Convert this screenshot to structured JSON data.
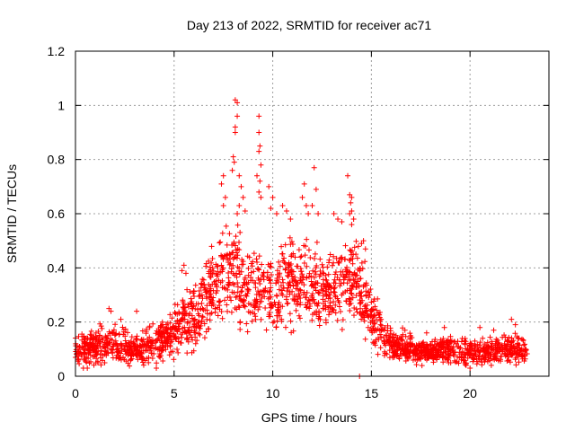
{
  "chart_data": {
    "type": "scatter",
    "title": "Day 213 of 2022, SRMTID for receiver ac71",
    "xlabel": "GPS time / hours",
    "ylabel": "SRMTID / TECUs",
    "xlim": [
      0,
      24
    ],
    "ylim": [
      0,
      1.2
    ],
    "x_ticks": [
      0,
      5,
      10,
      15,
      20
    ],
    "x_tick_labels": [
      "0",
      "5",
      "10",
      "15",
      "20"
    ],
    "y_ticks": [
      0,
      0.2,
      0.4,
      0.6,
      0.8,
      1,
      1.2
    ],
    "y_tick_labels": [
      "0",
      "0.2",
      "0.4",
      "0.6",
      "0.8",
      "1",
      "1.2"
    ],
    "grid": true,
    "marker": "plus",
    "series": [
      {
        "name": "SRMTID",
        "color": "#ff0000",
        "x_range": [
          0,
          22.9
        ],
        "envelope": [
          {
            "x": 0.0,
            "median": 0.09,
            "spread": 0.05
          },
          {
            "x": 1.0,
            "median": 0.11,
            "spread": 0.07
          },
          {
            "x": 2.0,
            "median": 0.12,
            "spread": 0.07
          },
          {
            "x": 3.0,
            "median": 0.1,
            "spread": 0.06
          },
          {
            "x": 4.0,
            "median": 0.12,
            "spread": 0.07
          },
          {
            "x": 5.0,
            "median": 0.17,
            "spread": 0.09
          },
          {
            "x": 5.5,
            "median": 0.2,
            "spread": 0.1
          },
          {
            "x": 6.0,
            "median": 0.22,
            "spread": 0.12
          },
          {
            "x": 6.5,
            "median": 0.26,
            "spread": 0.13
          },
          {
            "x": 7.0,
            "median": 0.33,
            "spread": 0.15
          },
          {
            "x": 7.5,
            "median": 0.37,
            "spread": 0.16
          },
          {
            "x": 8.0,
            "median": 0.4,
            "spread": 0.18
          },
          {
            "x": 8.5,
            "median": 0.36,
            "spread": 0.17
          },
          {
            "x": 9.0,
            "median": 0.32,
            "spread": 0.16
          },
          {
            "x": 9.5,
            "median": 0.33,
            "spread": 0.16
          },
          {
            "x": 10.0,
            "median": 0.3,
            "spread": 0.15
          },
          {
            "x": 10.5,
            "median": 0.32,
            "spread": 0.15
          },
          {
            "x": 11.0,
            "median": 0.35,
            "spread": 0.16
          },
          {
            "x": 12.0,
            "median": 0.33,
            "spread": 0.15
          },
          {
            "x": 12.5,
            "median": 0.3,
            "spread": 0.14
          },
          {
            "x": 13.0,
            "median": 0.32,
            "spread": 0.15
          },
          {
            "x": 13.5,
            "median": 0.36,
            "spread": 0.15
          },
          {
            "x": 14.0,
            "median": 0.37,
            "spread": 0.16
          },
          {
            "x": 14.5,
            "median": 0.31,
            "spread": 0.14
          },
          {
            "x": 15.0,
            "median": 0.22,
            "spread": 0.1
          },
          {
            "x": 15.5,
            "median": 0.15,
            "spread": 0.08
          },
          {
            "x": 16.0,
            "median": 0.12,
            "spread": 0.06
          },
          {
            "x": 17.0,
            "median": 0.1,
            "spread": 0.05
          },
          {
            "x": 18.0,
            "median": 0.09,
            "spread": 0.04
          },
          {
            "x": 19.0,
            "median": 0.1,
            "spread": 0.05
          },
          {
            "x": 20.0,
            "median": 0.09,
            "spread": 0.05
          },
          {
            "x": 21.0,
            "median": 0.09,
            "spread": 0.05
          },
          {
            "x": 22.0,
            "median": 0.1,
            "spread": 0.05
          },
          {
            "x": 22.9,
            "median": 0.09,
            "spread": 0.05
          }
        ],
        "outliers": [
          [
            8.1,
            1.02
          ],
          [
            8.2,
            1.01
          ],
          [
            8.2,
            0.96
          ],
          [
            8.1,
            0.92
          ],
          [
            8.1,
            0.9
          ],
          [
            8.0,
            0.81
          ],
          [
            8.05,
            0.79
          ],
          [
            7.95,
            0.76
          ],
          [
            8.3,
            0.74
          ],
          [
            9.3,
            0.96
          ],
          [
            9.3,
            0.9
          ],
          [
            9.35,
            0.85
          ],
          [
            9.3,
            0.83
          ],
          [
            9.4,
            0.78
          ],
          [
            9.2,
            0.74
          ],
          [
            9.35,
            0.72
          ],
          [
            9.3,
            0.68
          ],
          [
            9.4,
            0.66
          ],
          [
            7.5,
            0.74
          ],
          [
            7.4,
            0.71
          ],
          [
            7.6,
            0.66
          ],
          [
            7.5,
            0.63
          ],
          [
            8.4,
            0.7
          ],
          [
            8.5,
            0.66
          ],
          [
            8.3,
            0.63
          ],
          [
            8.6,
            0.61
          ],
          [
            8.2,
            0.6
          ],
          [
            9.8,
            0.7
          ],
          [
            10.0,
            0.66
          ],
          [
            9.9,
            0.62
          ],
          [
            10.2,
            0.6
          ],
          [
            10.5,
            0.63
          ],
          [
            10.7,
            0.61
          ],
          [
            10.9,
            0.58
          ],
          [
            11.6,
            0.71
          ],
          [
            11.5,
            0.66
          ],
          [
            11.7,
            0.63
          ],
          [
            11.8,
            0.6
          ],
          [
            12.1,
            0.77
          ],
          [
            12.2,
            0.69
          ],
          [
            12.0,
            0.63
          ],
          [
            12.3,
            0.6
          ],
          [
            13.1,
            0.6
          ],
          [
            13.3,
            0.58
          ],
          [
            13.5,
            0.57
          ],
          [
            13.8,
            0.74
          ],
          [
            13.9,
            0.67
          ],
          [
            14.0,
            0.66
          ],
          [
            13.95,
            0.64
          ],
          [
            14.0,
            0.61
          ],
          [
            13.9,
            0.6
          ],
          [
            14.1,
            0.58
          ],
          [
            14.0,
            0.56
          ],
          [
            14.4,
            0.0
          ],
          [
            14.5,
            0.49
          ],
          [
            14.7,
            0.47
          ],
          [
            14.6,
            0.5
          ],
          [
            5.5,
            0.41
          ],
          [
            5.4,
            0.39
          ],
          [
            5.6,
            0.38
          ],
          [
            1.7,
            0.25
          ],
          [
            1.8,
            0.24
          ],
          [
            3.1,
            0.24
          ],
          [
            2.3,
            0.21
          ],
          [
            3.7,
            0.05
          ],
          [
            0.4,
            0.03
          ],
          [
            0.6,
            0.03
          ],
          [
            4.1,
            0.03
          ],
          [
            20.0,
            0.03
          ],
          [
            19.8,
            0.04
          ],
          [
            22.1,
            0.21
          ],
          [
            22.3,
            0.19
          ],
          [
            20.5,
            0.18
          ],
          [
            21.2,
            0.17
          ],
          [
            18.7,
            0.18
          ],
          [
            16.7,
            0.17
          ],
          [
            17.8,
            0.16
          ]
        ]
      }
    ]
  }
}
